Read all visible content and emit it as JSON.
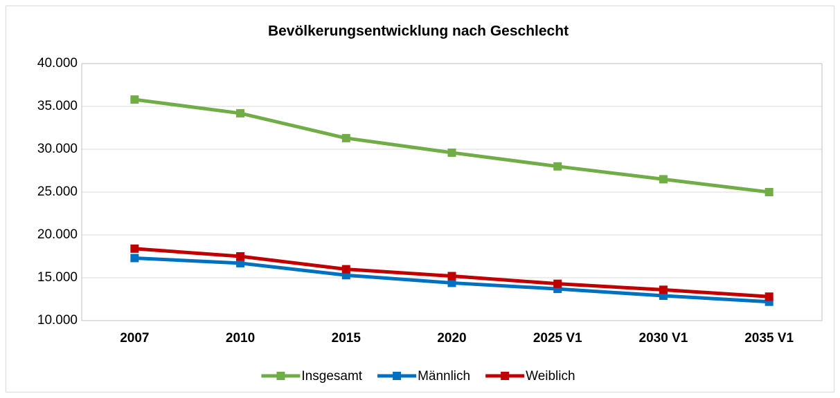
{
  "chart_data": {
    "type": "line",
    "title": "Bevölkerungsentwicklung nach Geschlecht",
    "categories": [
      "2007",
      "2010",
      "2015",
      "2020",
      "2025 V1",
      "2030 V1",
      "2035 V1"
    ],
    "series": [
      {
        "name": "Insgesamt",
        "color": "#70ad47",
        "values": [
          35800,
          34200,
          31300,
          29600,
          28000,
          26500,
          25000
        ]
      },
      {
        "name": "Männlich",
        "color": "#0070c0",
        "values": [
          17300,
          16700,
          15300,
          14400,
          13700,
          12900,
          12200
        ]
      },
      {
        "name": "Weiblich",
        "color": "#c00000",
        "values": [
          18400,
          17500,
          16000,
          15200,
          14300,
          13600,
          12800
        ]
      }
    ],
    "ylim": [
      10000,
      40000
    ],
    "yticks": [
      {
        "value": 10000,
        "label": "10.000"
      },
      {
        "value": 15000,
        "label": "15.000"
      },
      {
        "value": 20000,
        "label": "20.000"
      },
      {
        "value": 25000,
        "label": "25.000"
      },
      {
        "value": 30000,
        "label": "30.000"
      },
      {
        "value": 35000,
        "label": "35.000"
      },
      {
        "value": 40000,
        "label": "40.000"
      }
    ],
    "grid": true,
    "legend": "bottom"
  }
}
